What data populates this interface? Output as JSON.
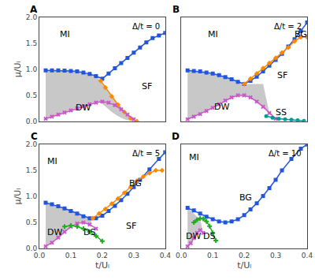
{
  "chart_data": [
    {
      "type": "line",
      "title": "A",
      "subtitle": "Δ/t = 0",
      "ylabel": "μ/Uₗ",
      "tick_labels": "y",
      "grid": false,
      "xlim": [
        0.0,
        0.4
      ],
      "ylim": [
        0.0,
        2.0
      ],
      "xticks": [
        {
          "value": 0,
          "label": "0.0"
        },
        0.1,
        0.2,
        0.3,
        0.4
      ],
      "yticks": [
        {
          "value": 0,
          "label": "0.0"
        },
        0.5,
        {
          "value": 1,
          "label": "1.0"
        },
        1.5,
        {
          "value": 2,
          "label": "2.0"
        }
      ],
      "annotations": [
        {
          "text": "MI",
          "x": 0.06,
          "y": 1.55
        },
        {
          "text": "SF",
          "x": 0.32,
          "y": 0.55
        },
        {
          "text": "DW",
          "x": 0.11,
          "y": 0.13
        }
      ],
      "series": [
        {
          "type": "band",
          "color": "#aaaaaa",
          "x": [
            0.02,
            0.04,
            0.06,
            0.08,
            0.1,
            0.12,
            0.14,
            0.16,
            0.18,
            0.195,
            0.21,
            0.23,
            0.25,
            0.27,
            0.29,
            0.31
          ],
          "upper": [
            0.98,
            0.98,
            0.98,
            0.975,
            0.97,
            0.96,
            0.94,
            0.91,
            0.87,
            0.78,
            0.65,
            0.48,
            0.32,
            0.18,
            0.06,
            0.0
          ],
          "lower": [
            0.05,
            0.09,
            0.13,
            0.17,
            0.21,
            0.25,
            0.29,
            0.33,
            0.36,
            0.36,
            0.28,
            0.18,
            0.1,
            0.04,
            0.01,
            0.0
          ]
        },
        {
          "type": "line",
          "color": "#2255dd",
          "marker": "square",
          "x": [
            0.02,
            0.04,
            0.06,
            0.08,
            0.1,
            0.12,
            0.14,
            0.16,
            0.18,
            0.2,
            0.22,
            0.24,
            0.26,
            0.28,
            0.3,
            0.32,
            0.34,
            0.36,
            0.38,
            0.4
          ],
          "values": [
            0.98,
            0.98,
            0.98,
            0.975,
            0.97,
            0.96,
            0.94,
            0.91,
            0.87,
            0.82,
            0.92,
            1.02,
            1.12,
            1.22,
            1.32,
            1.42,
            1.52,
            1.6,
            1.65,
            1.7
          ]
        },
        {
          "type": "line",
          "color": "#ff8800",
          "marker": "diamond",
          "x": [
            0.195,
            0.21,
            0.23,
            0.25,
            0.27,
            0.29,
            0.31
          ],
          "values": [
            0.78,
            0.65,
            0.48,
            0.32,
            0.18,
            0.06,
            0.0
          ]
        },
        {
          "type": "line",
          "color": "#cc55cc",
          "marker": "x",
          "x": [
            0.02,
            0.04,
            0.06,
            0.08,
            0.1,
            0.12,
            0.14,
            0.16,
            0.18,
            0.2,
            0.22,
            0.24,
            0.26,
            0.28,
            0.3
          ],
          "values": [
            0.05,
            0.09,
            0.13,
            0.17,
            0.21,
            0.25,
            0.29,
            0.33,
            0.36,
            0.38,
            0.36,
            0.31,
            0.23,
            0.13,
            0.04
          ]
        }
      ]
    },
    {
      "type": "line",
      "title": "B",
      "subtitle": "Δ/t = 2",
      "tick_labels": false,
      "grid": false,
      "xlim": [
        0.0,
        0.4
      ],
      "ylim": [
        0.0,
        2.0
      ],
      "xticks": [
        {
          "value": 0,
          "label": "0.0"
        },
        0.1,
        0.2,
        0.3,
        0.4
      ],
      "yticks": [
        {
          "value": 0,
          "label": "0.0"
        },
        0.5,
        {
          "value": 1,
          "label": "1.0"
        },
        1.5,
        {
          "value": 2,
          "label": "2.0"
        }
      ],
      "annotations": [
        {
          "text": "MI",
          "x": 0.08,
          "y": 1.55
        },
        {
          "text": "SF",
          "x": 0.3,
          "y": 0.75
        },
        {
          "text": "DW",
          "x": 0.1,
          "y": 0.15
        },
        {
          "text": "BG",
          "x": 0.355,
          "y": 1.55
        },
        {
          "text": "SS",
          "x": 0.295,
          "y": 0.05
        }
      ],
      "series": [
        {
          "type": "band",
          "color": "#aaaaaa",
          "x": [
            0.02,
            0.04,
            0.06,
            0.08,
            0.1,
            0.12,
            0.14,
            0.16,
            0.18,
            0.2,
            0.22,
            0.24,
            0.26,
            0.28,
            0.3
          ],
          "upper": [
            0.98,
            0.97,
            0.96,
            0.94,
            0.92,
            0.89,
            0.85,
            0.81,
            0.76,
            0.72,
            0.72,
            0.72,
            0.72,
            0.16,
            0.05
          ],
          "lower": [
            0.04,
            0.09,
            0.14,
            0.2,
            0.26,
            0.33,
            0.4,
            0.46,
            0.5,
            0.5,
            0.46,
            0.38,
            0.28,
            0.16,
            0.05
          ]
        },
        {
          "type": "line",
          "color": "#2255dd",
          "marker": "square",
          "x": [
            0.02,
            0.04,
            0.06,
            0.08,
            0.1,
            0.12,
            0.14,
            0.16,
            0.18,
            0.2,
            0.22,
            0.24,
            0.26,
            0.28,
            0.3,
            0.32,
            0.34,
            0.36,
            0.38,
            0.4
          ],
          "values": [
            0.98,
            0.97,
            0.96,
            0.94,
            0.92,
            0.89,
            0.85,
            0.81,
            0.76,
            0.72,
            0.78,
            0.86,
            0.96,
            1.07,
            1.18,
            1.3,
            1.44,
            1.58,
            1.74,
            1.9
          ]
        },
        {
          "type": "line",
          "color": "#ff8800",
          "marker": "diamond",
          "x": [
            0.2,
            0.22,
            0.24,
            0.26,
            0.28,
            0.3,
            0.32,
            0.34,
            0.36,
            0.38,
            0.4
          ],
          "values": [
            0.72,
            0.82,
            0.92,
            1.02,
            1.12,
            1.22,
            1.32,
            1.42,
            1.54,
            1.62,
            1.62
          ]
        },
        {
          "type": "line",
          "color": "#cc55cc",
          "marker": "x",
          "x": [
            0.02,
            0.04,
            0.06,
            0.08,
            0.1,
            0.12,
            0.14,
            0.16,
            0.18,
            0.2,
            0.22,
            0.24,
            0.26,
            0.28,
            0.3
          ],
          "values": [
            0.04,
            0.09,
            0.14,
            0.2,
            0.26,
            0.33,
            0.4,
            0.46,
            0.5,
            0.5,
            0.46,
            0.38,
            0.28,
            0.16,
            0.05
          ]
        },
        {
          "type": "line",
          "color": "#009999",
          "marker": "circle",
          "x": [
            0.27,
            0.29,
            0.31,
            0.33,
            0.35,
            0.37,
            0.39
          ],
          "values": [
            0.1,
            0.07,
            0.05,
            0.04,
            0.03,
            0.02,
            0.01
          ]
        }
      ]
    },
    {
      "type": "line",
      "title": "C",
      "subtitle": "Δ/t = 5",
      "xlabel": "t/Uₗ",
      "ylabel": "μ/Uₗ",
      "grid": false,
      "xlim": [
        0.0,
        0.4
      ],
      "ylim": [
        0.0,
        2.0
      ],
      "xticks": [
        {
          "value": 0,
          "label": "0.0"
        },
        0.1,
        0.2,
        0.3,
        0.4
      ],
      "yticks": [
        {
          "value": 0,
          "label": "0.0"
        },
        0.5,
        {
          "value": 1,
          "label": "1.0"
        },
        1.5,
        {
          "value": 2,
          "label": "2.0"
        }
      ],
      "annotations": [
        {
          "text": "MI",
          "x": 0.02,
          "y": 1.55
        },
        {
          "text": "SF",
          "x": 0.27,
          "y": 0.3
        },
        {
          "text": "DW",
          "x": 0.02,
          "y": 0.18
        },
        {
          "text": "BG",
          "x": 0.28,
          "y": 1.12
        },
        {
          "text": "DS",
          "x": 0.135,
          "y": 0.18
        }
      ],
      "series": [
        {
          "type": "band",
          "color": "#aaaaaa",
          "x": [
            0.02,
            0.04,
            0.06,
            0.08,
            0.1,
            0.12,
            0.14,
            0.16,
            0.17
          ],
          "upper": [
            0.88,
            0.85,
            0.81,
            0.77,
            0.72,
            0.67,
            0.62,
            0.58,
            0.58
          ],
          "lower": [
            0.04,
            0.11,
            0.21,
            0.32,
            0.42,
            0.48,
            0.5,
            0.46,
            0.58
          ]
        },
        {
          "type": "line",
          "color": "#2255dd",
          "marker": "square",
          "x": [
            0.02,
            0.04,
            0.06,
            0.08,
            0.1,
            0.12,
            0.14,
            0.16,
            0.18,
            0.2,
            0.22,
            0.24,
            0.26,
            0.28,
            0.3,
            0.32,
            0.35,
            0.38,
            0.4
          ],
          "values": [
            0.88,
            0.85,
            0.81,
            0.77,
            0.72,
            0.67,
            0.62,
            0.58,
            0.58,
            0.63,
            0.72,
            0.82,
            0.93,
            1.05,
            1.18,
            1.32,
            1.52,
            1.72,
            1.85
          ]
        },
        {
          "type": "line",
          "color": "#ff8800",
          "marker": "diamond",
          "x": [
            0.17,
            0.19,
            0.21,
            0.23,
            0.25,
            0.27,
            0.29,
            0.31,
            0.33,
            0.35,
            0.37,
            0.39
          ],
          "values": [
            0.58,
            0.67,
            0.76,
            0.86,
            0.96,
            1.07,
            1.18,
            1.3,
            1.38,
            1.45,
            1.5,
            1.5
          ]
        },
        {
          "type": "line",
          "color": "#cc55cc",
          "marker": "x",
          "x": [
            0.02,
            0.04,
            0.06,
            0.08,
            0.1,
            0.12,
            0.14,
            0.16,
            0.18
          ],
          "values": [
            0.04,
            0.11,
            0.21,
            0.32,
            0.42,
            0.48,
            0.5,
            0.46,
            0.38
          ]
        },
        {
          "type": "line",
          "color": "#22aa22",
          "marker": "cross",
          "x": [
            0.08,
            0.1,
            0.12,
            0.14,
            0.16,
            0.18,
            0.2
          ],
          "values": [
            0.42,
            0.44,
            0.42,
            0.38,
            0.32,
            0.24,
            0.14
          ]
        }
      ]
    },
    {
      "type": "line",
      "title": "D",
      "subtitle": "Δ/t = 10",
      "xlabel": "t/Uₗ",
      "tick_labels": "x",
      "grid": false,
      "xlim": [
        0.0,
        0.4
      ],
      "ylim": [
        0.0,
        2.0
      ],
      "xticks": [
        {
          "value": 0,
          "label": "0.0"
        },
        0.1,
        0.2,
        0.3,
        0.4
      ],
      "yticks": [
        {
          "value": 0,
          "label": "0.0"
        },
        0.5,
        {
          "value": 1,
          "label": "1.0"
        },
        1.5,
        {
          "value": 2,
          "label": "2.0"
        }
      ],
      "annotations": [
        {
          "text": "MI",
          "x": 0.02,
          "y": 1.62
        },
        {
          "text": "BG",
          "x": 0.18,
          "y": 0.85
        },
        {
          "text": "DW",
          "x": 0.01,
          "y": 0.1
        },
        {
          "text": "DS",
          "x": 0.065,
          "y": 0.1
        }
      ],
      "series": [
        {
          "type": "band",
          "color": "#aaaaaa",
          "x": [
            0.02,
            0.03,
            0.04,
            0.05,
            0.06,
            0.07
          ],
          "upper": [
            0.78,
            0.73,
            0.67,
            0.61,
            0.56,
            0.3
          ],
          "lower": [
            0.04,
            0.1,
            0.2,
            0.3,
            0.35,
            0.3
          ]
        },
        {
          "type": "line",
          "color": "#2255dd",
          "marker": "square",
          "x": [
            0.02,
            0.04,
            0.06,
            0.08,
            0.1,
            0.12,
            0.14,
            0.16,
            0.18,
            0.2,
            0.22,
            0.24,
            0.26,
            0.28,
            0.3,
            0.32,
            0.35,
            0.38,
            0.4
          ],
          "values": [
            0.78,
            0.73,
            0.67,
            0.61,
            0.56,
            0.52,
            0.5,
            0.52,
            0.56,
            0.64,
            0.75,
            0.87,
            1.01,
            1.16,
            1.32,
            1.5,
            1.72,
            1.92,
            2.0
          ]
        },
        {
          "type": "line",
          "color": "#cc55cc",
          "marker": "x",
          "x": [
            0.02,
            0.03,
            0.04,
            0.05,
            0.06,
            0.07
          ],
          "values": [
            0.04,
            0.1,
            0.2,
            0.3,
            0.35,
            0.3
          ]
        },
        {
          "type": "line",
          "color": "#22aa22",
          "marker": "cross",
          "x": [
            0.04,
            0.05,
            0.06,
            0.07,
            0.08,
            0.09,
            0.1,
            0.11
          ],
          "values": [
            0.5,
            0.55,
            0.58,
            0.57,
            0.52,
            0.43,
            0.3,
            0.15
          ]
        }
      ]
    }
  ]
}
